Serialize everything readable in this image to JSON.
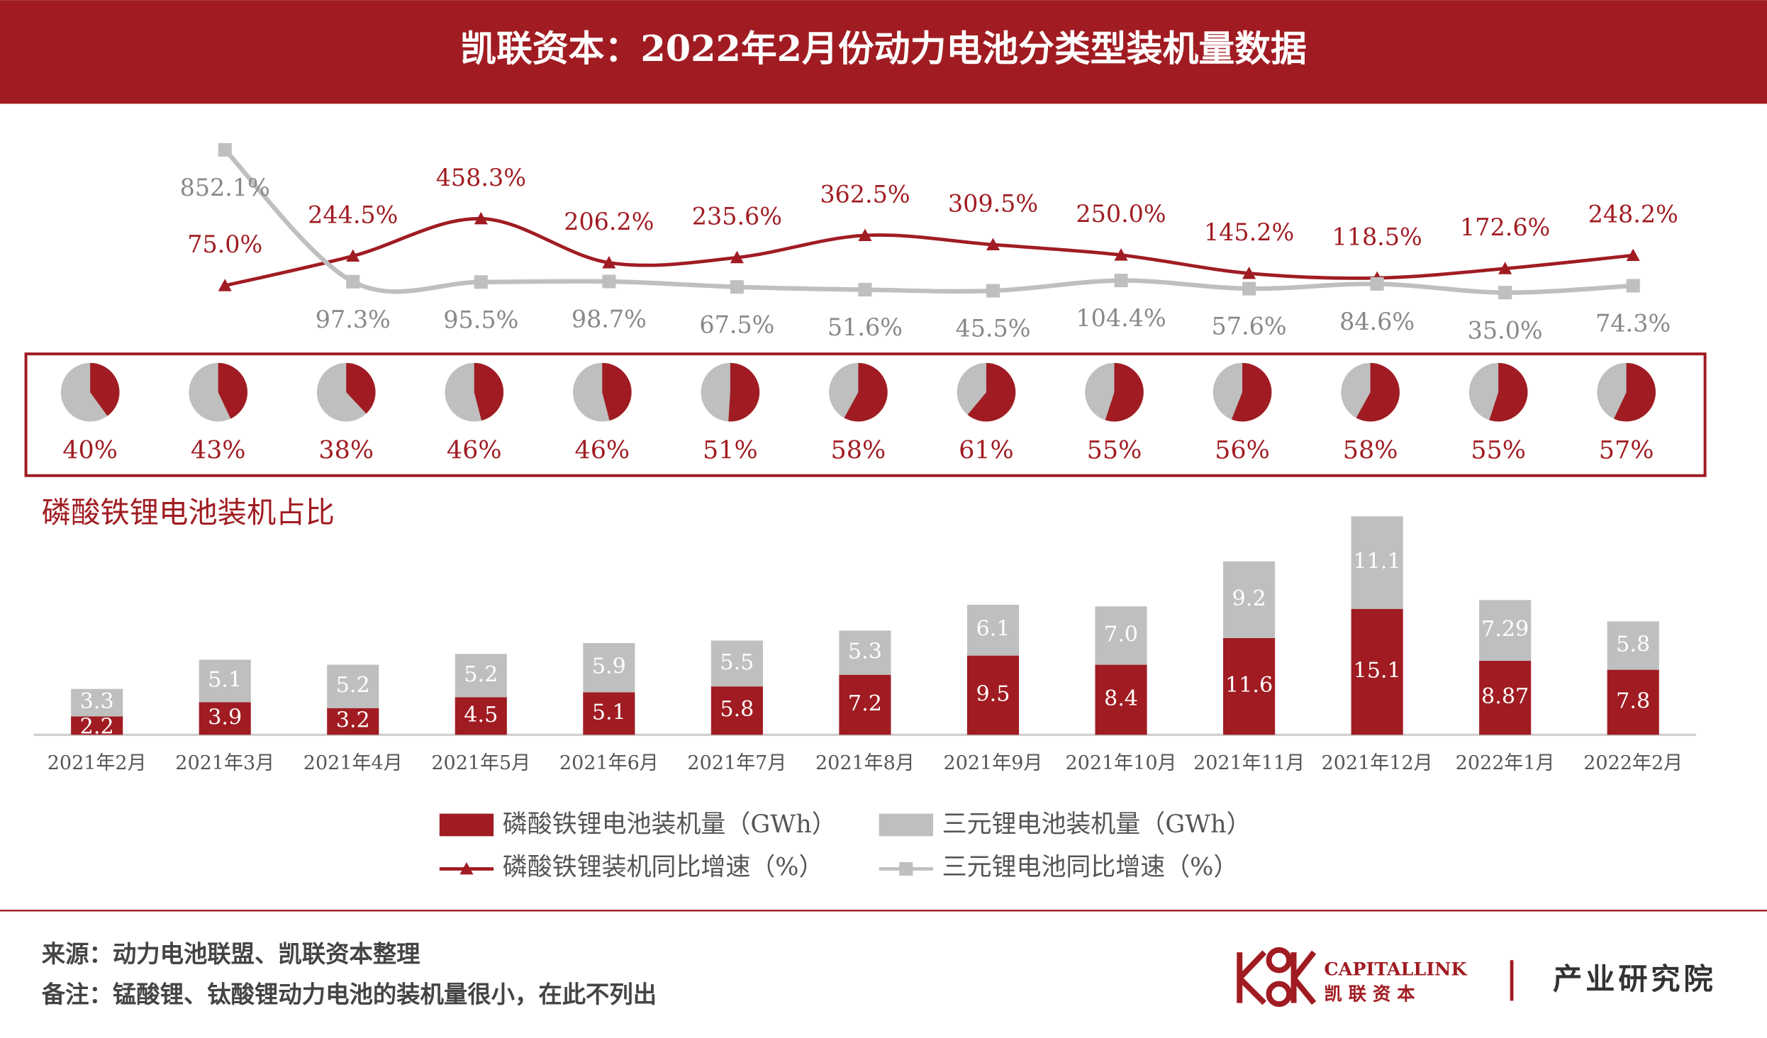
{
  "header": {
    "title": "凯联资本：2022年2月份动力电池分类型装机量数据"
  },
  "chart_data": [
    {
      "type": "line",
      "series": [
        {
          "name": "磷酸铁锂装机同比增速（%）",
          "color": "#a01c22",
          "marker": "triangle",
          "values": [
            null,
            75.0,
            244.5,
            458.3,
            206.2,
            235.6,
            362.5,
            309.5,
            250.0,
            145.2,
            118.5,
            172.6,
            248.2
          ],
          "value_labels": [
            null,
            "75.0%",
            "244.5%",
            "458.3%",
            "206.2%",
            "235.6%",
            "362.5%",
            "309.5%",
            "250.0%",
            "145.2%",
            "118.5%",
            "172.6%",
            "248.2%"
          ]
        },
        {
          "name": "三元锂电池同比增速（%）",
          "color": "#bfbfbf",
          "marker": "square",
          "values": [
            null,
            852.1,
            97.3,
            95.5,
            98.7,
            67.5,
            51.6,
            45.5,
            104.4,
            57.6,
            84.6,
            35.0,
            74.3
          ],
          "value_labels": [
            null,
            "852.1%",
            "97.3%",
            "95.5%",
            "98.7%",
            "67.5%",
            "51.6%",
            "45.5%",
            "104.4%",
            "57.6%",
            "84.6%",
            "35.0%",
            "74.3%"
          ]
        }
      ]
    },
    {
      "type": "pie",
      "title": "磷酸铁锂电池装机占比",
      "colors": [
        "#a01c22",
        "#bfbfbf"
      ],
      "values": [
        40,
        43,
        38,
        46,
        46,
        51,
        58,
        61,
        55,
        56,
        58,
        55,
        57
      ],
      "value_labels": [
        "40%",
        "43%",
        "38%",
        "46%",
        "46%",
        "51%",
        "58%",
        "61%",
        "55%",
        "56%",
        "58%",
        "55%",
        "57%"
      ]
    },
    {
      "type": "bar",
      "stacked": true,
      "categories": [
        "2021年2月",
        "2021年3月",
        "2021年4月",
        "2021年5月",
        "2021年6月",
        "2021年7月",
        "2021年8月",
        "2021年9月",
        "2021年10月",
        "2021年11月",
        "2021年12月",
        "2022年1月",
        "2022年2月"
      ],
      "series": [
        {
          "name": "磷酸铁锂电池装机量（GWh）",
          "color": "#a01c22",
          "values": [
            2.2,
            3.9,
            3.2,
            4.5,
            5.1,
            5.8,
            7.2,
            9.5,
            8.4,
            11.6,
            15.1,
            8.87,
            7.8
          ]
        },
        {
          "name": "三元锂电池装机量（GWh）",
          "color": "#bfbfbf",
          "values": [
            3.3,
            5.1,
            5.2,
            5.2,
            5.9,
            5.5,
            5.3,
            6.1,
            7.0,
            9.2,
            11.1,
            7.29,
            5.8
          ],
          "value_labels": [
            "3.3",
            "5.1",
            "5.2",
            "5.2",
            "5.9",
            "5.5",
            "5.3",
            "6.1",
            "7.0",
            "9.2",
            "11.1",
            "7.29",
            "5.8"
          ]
        }
      ]
    }
  ],
  "footer": {
    "source": "来源：动力电池联盟、凯联资本整理",
    "note": "备注：锰酸锂、钛酸锂动力电池的装机量很小，在此不列出",
    "logo_en": "CAPITALLINK",
    "logo_cn": "凯 联 资 本",
    "dept": "产业研究院"
  }
}
